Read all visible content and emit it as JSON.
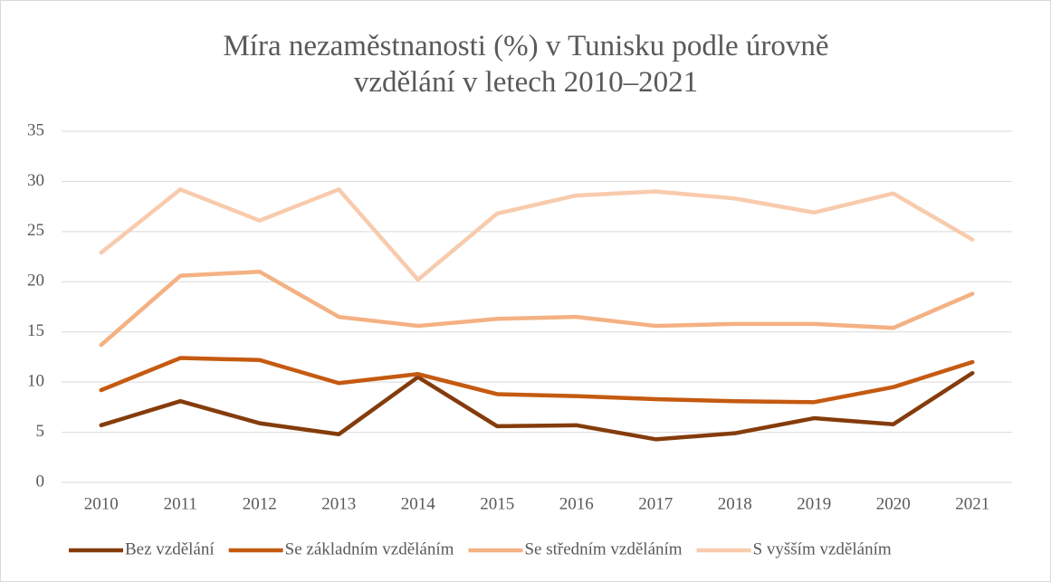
{
  "chart_data": {
    "type": "line",
    "title": "Míra nezaměstnanosti (%) v Tunisku podle úrovně vzdělání v letech 2010–2021",
    "categories": [
      "2010",
      "2011",
      "2012",
      "2013",
      "2014",
      "2015",
      "2016",
      "2017",
      "2018",
      "2019",
      "2020",
      "2021"
    ],
    "series": [
      {
        "name": "Bez vzdělání",
        "color": "#843c0c",
        "values": [
          5.7,
          8.1,
          5.9,
          4.8,
          10.5,
          5.6,
          5.7,
          4.3,
          4.9,
          6.4,
          5.8,
          10.9
        ]
      },
      {
        "name": "Se základním vzděláním",
        "color": "#c55a11",
        "values": [
          9.2,
          12.4,
          12.2,
          9.9,
          10.8,
          8.8,
          8.6,
          8.3,
          8.1,
          8.0,
          9.5,
          12.0
        ]
      },
      {
        "name": "Se středním vzděláním",
        "color": "#f4b183",
        "values": [
          13.7,
          20.6,
          21.0,
          16.5,
          15.6,
          16.3,
          16.5,
          15.6,
          15.8,
          15.8,
          15.4,
          18.8
        ]
      },
      {
        "name": "S vyšším vzděláním",
        "color": "#f8cbad",
        "values": [
          22.9,
          29.2,
          26.1,
          29.2,
          20.2,
          26.8,
          28.6,
          29.0,
          28.3,
          26.9,
          28.8,
          24.2
        ]
      }
    ],
    "ylim": [
      0,
      35
    ],
    "yticks": [
      0,
      5,
      10,
      15,
      20,
      25,
      30,
      35
    ],
    "grid": true,
    "legend": "bottom"
  }
}
